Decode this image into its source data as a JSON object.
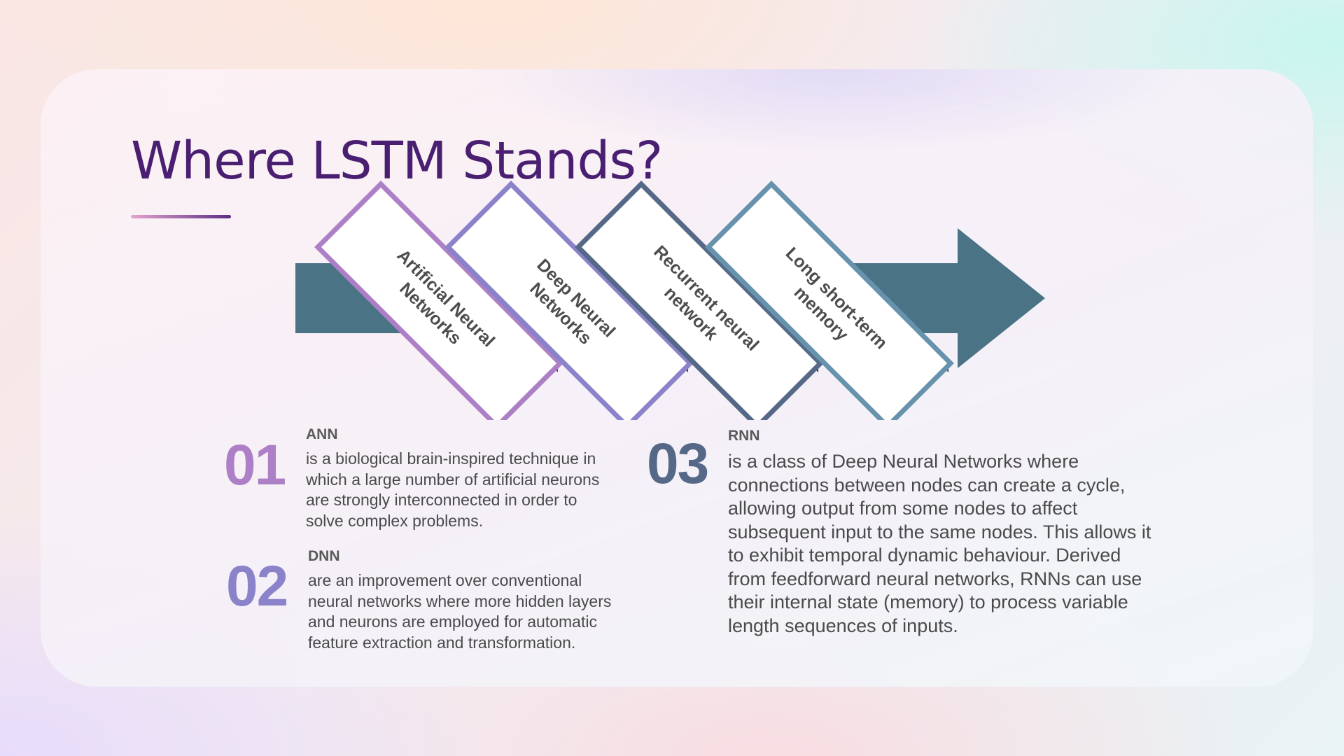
{
  "slide": {
    "title": "Where LSTM Stands?"
  },
  "diagram": {
    "arrow_color": "#4a7386",
    "stages": [
      {
        "line1": "Artificial Neural",
        "line2": "Networks",
        "color": "#ac7fc6",
        "shadow": "#5e3a7c"
      },
      {
        "line1": "Deep Neural",
        "line2": "Networks",
        "color": "#8a83c9",
        "shadow": "#3d3472"
      },
      {
        "line1": "Recurrent neural",
        "line2": "network",
        "color": "#566887",
        "shadow": "#262f45"
      },
      {
        "line1": "Long short-term",
        "line2": "memory",
        "color": "#6692ac",
        "shadow": "#2c4a5c"
      }
    ]
  },
  "items": [
    {
      "number": "01",
      "heading": "ANN",
      "description": "is a biological brain-inspired technique in which a large number of artificial neurons are strongly interconnected in order to solve complex problems.",
      "color": "#ac7fc6"
    },
    {
      "number": "02",
      "heading": "DNN",
      "description": "are an improvement over conventional neural networks where more hidden layers and neurons are employed for automatic feature extraction and transformation.",
      "color": "#8a83c9"
    },
    {
      "number": "03",
      "heading": "RNN",
      "description": "is a class of Deep Neural Networks where connections between nodes can create a cycle, allowing output from some nodes to affect subsequent input to the same nodes. This allows it to exhibit temporal dynamic behaviour. Derived from feedforward neural networks, RNNs can use their internal state (memory) to process variable length sequences of inputs.",
      "color": "#566887"
    }
  ]
}
